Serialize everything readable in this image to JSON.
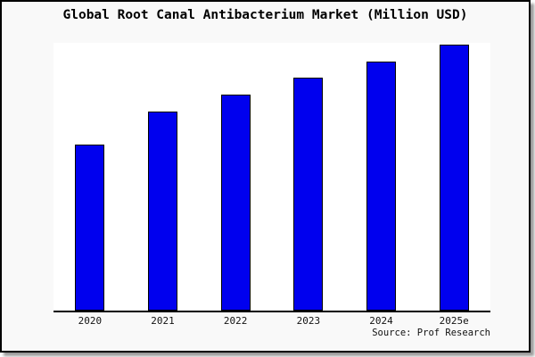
{
  "title": "Global Root Canal Antibacterium Market (Million USD)",
  "source": "Source: Prof Research",
  "colors": {
    "bar_fill": "#0000ee",
    "bar_edge": "#000000",
    "panel_background": "#f9f9f9",
    "plot_background": "#ffffff",
    "axis_line": "#000000",
    "text": "#000000"
  },
  "chart_data": {
    "type": "bar",
    "title": "Global Root Canal Antibacterium Market (Million USD)",
    "categories": [
      "2020",
      "2021",
      "2022",
      "2023",
      "2024",
      "2025e"
    ],
    "values": [
      188,
      225,
      244,
      263,
      281,
      300
    ],
    "values_note": "relative bar heights in screen px; the chart shows no y-axis scale, ticks or value labels",
    "ylim": [
      0,
      303
    ],
    "xlabel": "",
    "ylabel": "",
    "grid": false,
    "legend": false,
    "annotations": [
      "Source: Prof Research"
    ]
  }
}
